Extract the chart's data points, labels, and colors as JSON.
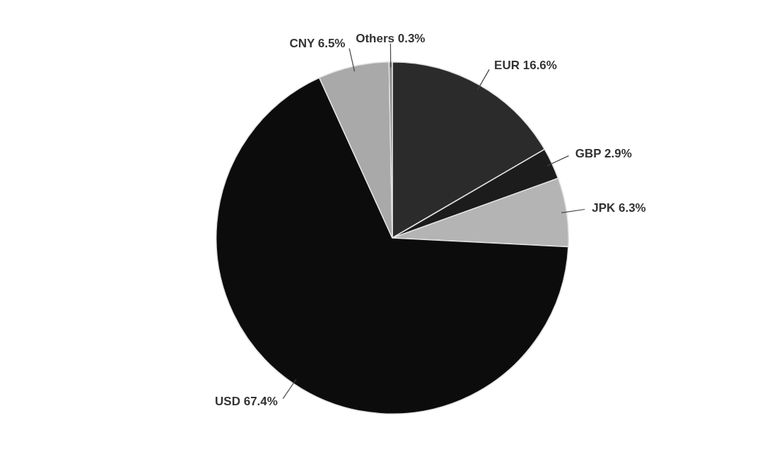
{
  "chart_data": {
    "type": "pie",
    "categories": [
      "EUR",
      "GBP",
      "JPK",
      "USD",
      "CNY",
      "Others"
    ],
    "values": [
      16.6,
      2.9,
      6.3,
      67.4,
      6.5,
      0.3
    ],
    "value_labels": [
      "16.6%",
      "2.9%",
      "6.3%",
      "67.4%",
      "6.5%",
      "0.3%"
    ],
    "colors": [
      "#2b2b2b",
      "#1c1c1c",
      "#b4b4b4",
      "#0c0c0c",
      "#a9a9a9",
      "#8a8a8a"
    ],
    "legend": false
  }
}
